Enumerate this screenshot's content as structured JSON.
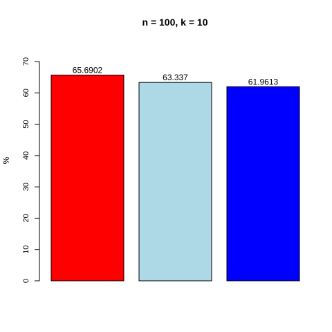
{
  "chart_data": {
    "type": "bar",
    "title": "n = 100, k = 10",
    "xlabel": "",
    "ylabel": "%",
    "ylim": [
      0,
      70
    ],
    "yticks": [
      0,
      10,
      20,
      30,
      40,
      50,
      60,
      70
    ],
    "grid": false,
    "legend": "none",
    "values": [
      65.6902,
      63.337,
      61.9613
    ],
    "value_labels": [
      "65.6902",
      "63.337",
      "61.9613"
    ],
    "colors": [
      "#ff0000",
      "#add8e6",
      "#0000ff"
    ],
    "border_color": "#000000"
  }
}
